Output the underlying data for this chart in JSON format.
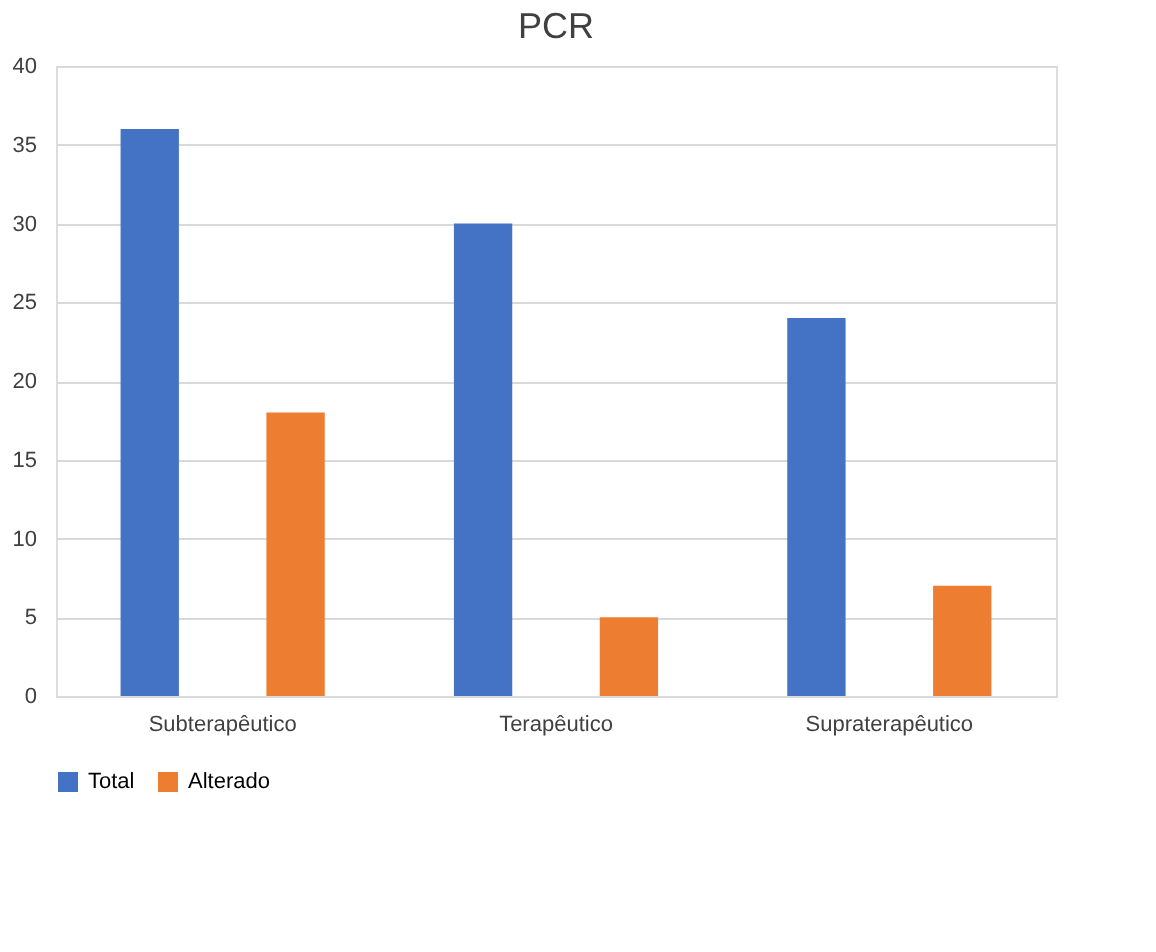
{
  "chart_data": {
    "type": "bar",
    "title": "PCR",
    "categories": [
      "Subterapêutico",
      "Terapêutico",
      "Supraterapêutico"
    ],
    "series": [
      {
        "name": "Total",
        "color": "#4472c4",
        "values": [
          36,
          30,
          24
        ]
      },
      {
        "name": "Alterado",
        "color": "#ed7d31",
        "values": [
          18,
          5,
          7
        ]
      }
    ],
    "ylim": [
      0,
      40
    ],
    "yticks": [
      0,
      5,
      10,
      15,
      20,
      25,
      30,
      35,
      40
    ],
    "grid": "y",
    "legend": "bottom"
  }
}
